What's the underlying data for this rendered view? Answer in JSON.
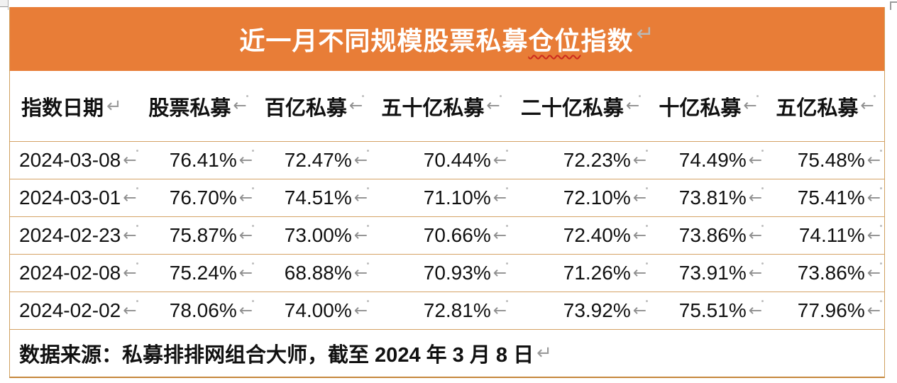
{
  "marks": {
    "return": "↵",
    "cell": "←"
  },
  "title": {
    "pre": "近一月不同规模股票私募",
    "misspelled": "仓位",
    "post": "指数"
  },
  "colors": {
    "header_bg": "#E87D37",
    "inner_border": "#D5A265",
    "outer_border": "#C5873C",
    "title_text": "#FFFFFF",
    "body_text": "#111111",
    "mark_gray": "#8F8F8F",
    "spellcheck_red": "#CC2B1D"
  },
  "table": {
    "columns": [
      "指数日期",
      "股票私募",
      "百亿私募",
      "五十亿私募",
      "二十亿私募",
      "十亿私募",
      "五亿私募"
    ],
    "rows": [
      {
        "date": "2024-03-08",
        "values": [
          "76.41%",
          "72.47%",
          "70.44%",
          "72.23%",
          "74.49%",
          "75.48%"
        ]
      },
      {
        "date": "2024-03-01",
        "values": [
          "76.70%",
          "74.51%",
          "71.10%",
          "72.10%",
          "73.81%",
          "75.41%"
        ]
      },
      {
        "date": "2024-02-23",
        "values": [
          "75.87%",
          "73.00%",
          "70.66%",
          "72.40%",
          "73.86%",
          "74.11%"
        ]
      },
      {
        "date": "2024-02-08",
        "values": [
          "75.24%",
          "68.88%",
          "70.93%",
          "71.26%",
          "73.91%",
          "73.86%"
        ]
      },
      {
        "date": "2024-02-02",
        "values": [
          "78.06%",
          "74.00%",
          "72.81%",
          "73.92%",
          "75.51%",
          "77.96%"
        ]
      }
    ]
  },
  "footer": {
    "source": "数据来源：私募排排网组合大师，截至 2024 年 3 月 8 日"
  }
}
